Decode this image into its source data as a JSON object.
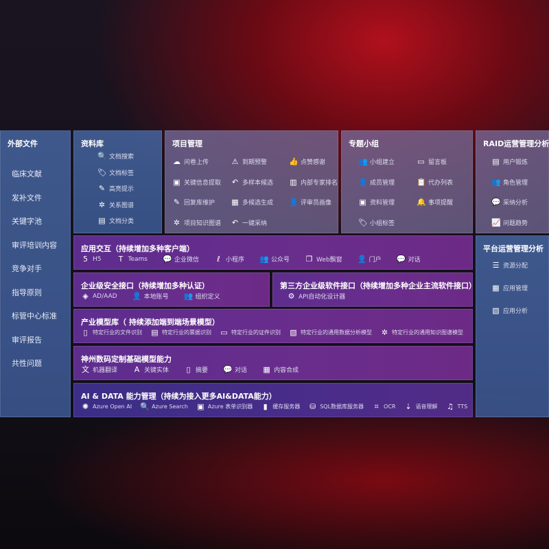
{
  "external": {
    "title": "外部文件",
    "items": [
      "临床文献",
      "发补文件",
      "关键字池",
      "审评培训内容",
      "竞争对手",
      "指导原则",
      "标管中心标准",
      "审评报告",
      "共性问题"
    ]
  },
  "library": {
    "title": "资料库",
    "items": [
      {
        "label": "文档搜索",
        "icon": "doc-search-icon",
        "g": "🔍"
      },
      {
        "label": "文档标签",
        "icon": "tag-icon",
        "g": "🏷"
      },
      {
        "label": "高亮提示",
        "icon": "pen-icon",
        "g": "✎"
      },
      {
        "label": "关系图谱",
        "icon": "graph-icon",
        "g": "✲"
      },
      {
        "label": "文档分类",
        "icon": "doc-category-icon",
        "g": "▤"
      }
    ]
  },
  "project": {
    "title": "项目管理",
    "items": [
      {
        "label": "问卷上传",
        "icon": "cloud-upload-icon",
        "g": "☁"
      },
      {
        "label": "到期预警",
        "icon": "alarm-icon",
        "g": "⚠"
      },
      {
        "label": "点赞感谢",
        "icon": "thumbs-up-icon",
        "g": "👍"
      },
      {
        "label": "关键信息提取",
        "icon": "window-icon",
        "g": "▣"
      },
      {
        "label": "多样本候选",
        "icon": "reply-icon",
        "g": "↶"
      },
      {
        "label": "内部专家排名",
        "icon": "ranking-icon",
        "g": "▥"
      },
      {
        "label": "回复库维护",
        "icon": "edit-icon",
        "g": "✎"
      },
      {
        "label": "多候选生成",
        "icon": "puzzle-icon",
        "g": "▦"
      },
      {
        "label": "评审员画像",
        "icon": "user-icon",
        "g": "👤"
      },
      {
        "label": "项目知识图谱",
        "icon": "graph-icon",
        "g": "✲"
      },
      {
        "label": "一键采纳",
        "icon": "reply-icon",
        "g": "↶"
      }
    ]
  },
  "group": {
    "title": "专题小组",
    "items": [
      {
        "label": "小组建立",
        "icon": "users-icon",
        "g": "👥"
      },
      {
        "label": "留言板",
        "icon": "bbs-icon",
        "g": "▭"
      },
      {
        "label": "成员管理",
        "icon": "user-add-icon",
        "g": "👤"
      },
      {
        "label": "代办列表",
        "icon": "clipboard-icon",
        "g": "📋"
      },
      {
        "label": "资料管理",
        "icon": "folder-icon",
        "g": "▣"
      },
      {
        "label": "事项提醒",
        "icon": "bell-icon",
        "g": "🔔"
      },
      {
        "label": "小组标签",
        "icon": "tag-icon",
        "g": "🏷"
      }
    ]
  },
  "raid": {
    "title": "RAID运营管理分析",
    "items": [
      {
        "label": "用户锻炼",
        "icon": "id-card-icon",
        "g": "▤"
      },
      {
        "label": "角色管理",
        "icon": "users-icon",
        "g": "👥"
      },
      {
        "label": "采纳分析",
        "icon": "qa-icon",
        "g": "💬"
      },
      {
        "label": "问题趋势",
        "icon": "trend-icon",
        "g": "📈"
      }
    ]
  },
  "platform": {
    "title": "平台运营管理分析",
    "items": [
      {
        "label": "资源分配",
        "icon": "list-icon",
        "g": "☰"
      },
      {
        "label": "应用管理",
        "icon": "apps-icon",
        "g": "▦"
      },
      {
        "label": "应用分析",
        "icon": "chart-icon",
        "g": "▧"
      }
    ]
  },
  "app": {
    "title": "应用交互（持续增加多种客户端）",
    "items": [
      {
        "label": "H5",
        "icon": "html5-icon",
        "g": "5"
      },
      {
        "label": "Teams",
        "icon": "teams-icon",
        "g": "T"
      },
      {
        "label": "企业微信",
        "icon": "wecom-icon",
        "g": "💬"
      },
      {
        "label": "小程序",
        "icon": "miniprogram-icon",
        "g": "ℓ"
      },
      {
        "label": "公众号",
        "icon": "users-icon",
        "g": "👥"
      },
      {
        "label": "Web飘窗",
        "icon": "window-icon",
        "g": "❐"
      },
      {
        "label": "门户",
        "icon": "portal-icon",
        "g": "👤"
      },
      {
        "label": "对话",
        "icon": "chat-icon",
        "g": "💬"
      }
    ]
  },
  "security": {
    "title": "企业级安全接口（持续增加多种认证）",
    "items": [
      {
        "label": "AD/AAD",
        "icon": "ad-icon",
        "g": "◈"
      },
      {
        "label": "本地账号",
        "icon": "account-icon",
        "g": "👤"
      },
      {
        "label": "组织定义",
        "icon": "org-icon",
        "g": "👥"
      }
    ]
  },
  "thirdparty": {
    "title": "第三方企业级软件接口（持续增加多种企业主流软件接口）",
    "items": [
      {
        "label": "API自动化设计器",
        "icon": "api-gear-icon",
        "g": "⚙"
      }
    ]
  },
  "industry": {
    "title": "产业模型库（ 持续添加端到端场景模型）",
    "items": [
      {
        "label": "特定行业的文件识别",
        "icon": "file-icon",
        "g": "▯"
      },
      {
        "label": "特定行业的票据识别",
        "icon": "receipt-icon",
        "g": "▤"
      },
      {
        "label": "特定行业的证件识别",
        "icon": "id-card-icon",
        "g": "▭"
      },
      {
        "label": "特定行业的通用数据分析模型",
        "icon": "data-chart-icon",
        "g": "▧"
      },
      {
        "label": "特定行业的通用知识图谱模型",
        "icon": "graph-icon",
        "g": "✲"
      }
    ]
  },
  "base": {
    "title": "神州数码定制基础模型能力",
    "items": [
      {
        "label": "机器翻译",
        "icon": "translate-icon",
        "g": "文"
      },
      {
        "label": "关键实体",
        "icon": "entity-icon",
        "g": "A"
      },
      {
        "label": "摘要",
        "icon": "summary-icon",
        "g": "▯"
      },
      {
        "label": "对话",
        "icon": "chat-icon",
        "g": "💬"
      },
      {
        "label": "内容合成",
        "icon": "puzzle-icon",
        "g": "▦"
      }
    ]
  },
  "aidata": {
    "title": "AI & DATA 能力管理（持续为接入更多AI&DATA能力）",
    "items": [
      {
        "label": "Azure Open AI",
        "icon": "openai-icon",
        "g": "✺"
      },
      {
        "label": "Azure Search",
        "icon": "search-doc-icon",
        "g": "🔍"
      },
      {
        "label": "Azure 表单识别器",
        "icon": "form-icon",
        "g": "▣"
      },
      {
        "label": "缓存服务器",
        "icon": "cache-icon",
        "g": "▮"
      },
      {
        "label": "SQL数据库服务器",
        "icon": "database-icon",
        "g": "⛁"
      },
      {
        "label": "OCR",
        "icon": "ocr-icon",
        "g": "⌗"
      },
      {
        "label": "语音理解",
        "icon": "speech-icon",
        "g": "⇣"
      },
      {
        "label": "TTS",
        "icon": "tts-icon",
        "g": "♫"
      }
    ]
  }
}
